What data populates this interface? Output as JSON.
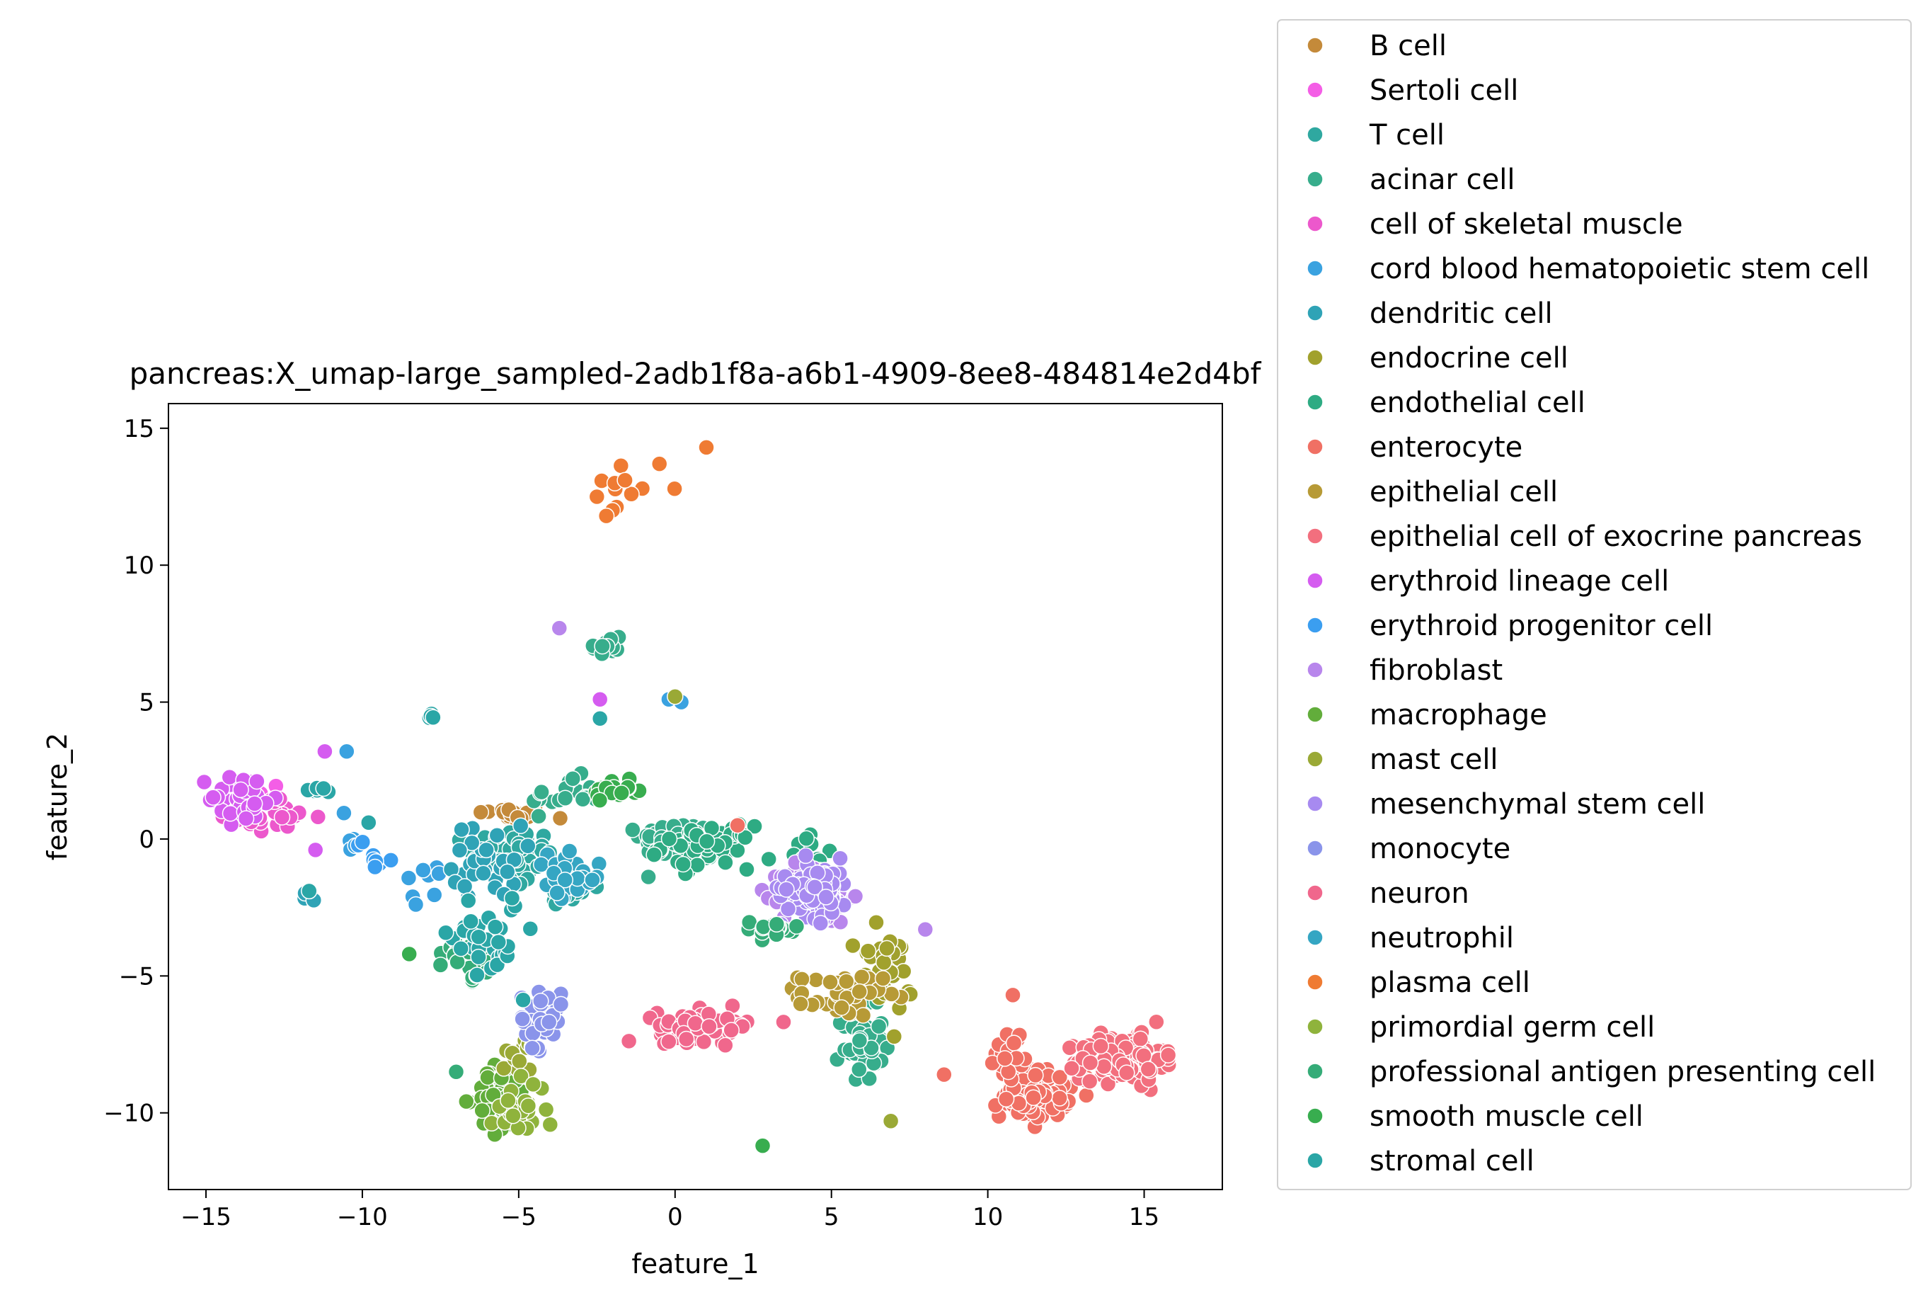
{
  "chart_data": {
    "type": "scatter",
    "title": "pancreas:X_umap-large_sampled-2adb1f8a-a6b1-4909-8ee8-484814e2d4bf",
    "xlabel": "feature_1",
    "ylabel": "feature_2",
    "xlim": [
      -16.2,
      17.5
    ],
    "ylim": [
      -12.8,
      15.9
    ],
    "xticks": [
      -15,
      -10,
      -5,
      0,
      5,
      10,
      15
    ],
    "yticks": [
      -10,
      -5,
      0,
      5,
      10,
      15
    ],
    "xtick_labels": [
      "−15",
      "−10",
      "−5",
      "0",
      "5",
      "10",
      "15"
    ],
    "ytick_labels": [
      "−10",
      "−5",
      "0",
      "5",
      "10",
      "15"
    ],
    "grid": false,
    "legend_placement": "outside-right",
    "series": [
      {
        "name": "B cell",
        "color": "#c48a3a",
        "clusters": [
          [
            -5.2,
            0.9,
            1.0,
            0.35,
            25
          ]
        ]
      },
      {
        "name": "Sertoli cell",
        "color": "#f45ee6",
        "clusters": [
          [
            -13.5,
            1.5,
            1.2,
            0.8,
            12
          ]
        ]
      },
      {
        "name": "T cell",
        "color": "#2fa8a0",
        "clusters": [
          [
            -5.2,
            -0.6,
            1.2,
            0.9,
            60
          ],
          [
            -3.4,
            -1.8,
            0.7,
            0.6,
            25
          ]
        ]
      },
      {
        "name": "acinar cell",
        "color": "#37ad8c",
        "clusters": [
          [
            -2.2,
            7.0,
            0.5,
            0.5,
            12
          ],
          [
            0.0,
            0.0,
            1.0,
            0.6,
            70
          ],
          [
            -3.5,
            1.6,
            1.0,
            0.6,
            20
          ],
          [
            6.0,
            -7.5,
            0.6,
            1.2,
            50
          ]
        ]
      },
      {
        "name": "cell of skeletal muscle",
        "color": "#ec58cc",
        "clusters": [
          [
            -12.8,
            0.8,
            1.2,
            0.6,
            28
          ]
        ]
      },
      {
        "name": "cord blood hematopoietic stem cell",
        "color": "#3aa2e0",
        "clusters": [
          [
            -8.0,
            -1.5,
            0.7,
            0.7,
            8
          ],
          [
            -10.4,
            0.3,
            0.4,
            0.8,
            5
          ]
        ]
      },
      {
        "name": "dendritic cell",
        "color": "#2fa3b6",
        "clusters": [
          [
            -6.0,
            -0.8,
            1.0,
            1.2,
            35
          ],
          [
            -11.8,
            -2.1,
            0.3,
            0.2,
            3
          ]
        ]
      },
      {
        "name": "endocrine cell",
        "color": "#a1a12d",
        "clusters": [
          [
            6.5,
            -5.0,
            1.0,
            1.4,
            40
          ]
        ]
      },
      {
        "name": "endothelial cell",
        "color": "#2eab83",
        "clusters": [
          [
            1.0,
            -0.3,
            1.3,
            0.7,
            60
          ],
          [
            4.5,
            -1.0,
            0.8,
            1.0,
            20
          ]
        ]
      },
      {
        "name": "enterocyte",
        "color": "#f07064",
        "clusters": [
          [
            11.5,
            -9.3,
            1.0,
            0.8,
            140
          ],
          [
            10.7,
            -7.8,
            0.4,
            0.8,
            25
          ]
        ]
      },
      {
        "name": "epithelial cell",
        "color": "#b79a36",
        "clusters": [
          [
            5.3,
            -5.7,
            1.2,
            0.7,
            40
          ]
        ]
      },
      {
        "name": "epithelial cell of exocrine pancreas",
        "color": "#f26f7e",
        "clusters": [
          [
            14.3,
            -8.0,
            1.2,
            0.7,
            220
          ]
        ]
      },
      {
        "name": "erythroid lineage cell",
        "color": "#d55cf0",
        "clusters": [
          [
            -13.8,
            1.5,
            1.0,
            0.8,
            40
          ]
        ]
      },
      {
        "name": "erythroid progenitor cell",
        "color": "#3b9ef0",
        "clusters": [
          [
            -9.5,
            -0.5,
            0.7,
            0.8,
            8
          ]
        ]
      },
      {
        "name": "fibroblast",
        "color": "#b886ec",
        "clusters": [
          [
            4.5,
            -2.0,
            1.0,
            1.0,
            90
          ]
        ]
      },
      {
        "name": "macrophage",
        "color": "#62ad3b",
        "clusters": [
          [
            -5.5,
            -9.5,
            0.8,
            1.1,
            80
          ]
        ]
      },
      {
        "name": "mast cell",
        "color": "#9aa936",
        "clusters": [
          [
            -5.0,
            -8.0,
            0.5,
            0.7,
            12
          ]
        ]
      },
      {
        "name": "mesenchymal stem cell",
        "color": "#a78af0",
        "clusters": [
          [
            4.5,
            -1.8,
            1.0,
            1.0,
            80
          ]
        ]
      },
      {
        "name": "monocyte",
        "color": "#8a94ea",
        "clusters": [
          [
            -4.3,
            -6.5,
            0.6,
            1.0,
            35
          ]
        ]
      },
      {
        "name": "neuron",
        "color": "#f0678c",
        "clusters": [
          [
            1.0,
            -6.8,
            1.4,
            0.5,
            70
          ]
        ]
      },
      {
        "name": "neutrophil",
        "color": "#35a6c3",
        "clusters": [
          [
            -3.5,
            -1.5,
            1.0,
            0.8,
            30
          ]
        ]
      },
      {
        "name": "plasma cell",
        "color": "#ef7b33",
        "clusters": [
          [
            -1.5,
            12.8,
            1.2,
            0.8,
            8
          ]
        ]
      },
      {
        "name": "primordial germ cell",
        "color": "#8fb33c",
        "clusters": [
          [
            -5.0,
            -9.8,
            0.8,
            0.9,
            25
          ]
        ]
      },
      {
        "name": "professional antigen presenting cell",
        "color": "#35ac78",
        "clusters": [
          [
            -6.5,
            -4.4,
            0.8,
            0.7,
            25
          ],
          [
            3.0,
            -3.3,
            0.9,
            0.3,
            20
          ]
        ]
      },
      {
        "name": "smooth muscle cell",
        "color": "#38ad4f",
        "clusters": [
          [
            -1.8,
            1.8,
            0.8,
            0.4,
            20
          ]
        ]
      },
      {
        "name": "stromal cell",
        "color": "#2aa6a6",
        "clusters": [
          [
            -6.0,
            -3.5,
            1.0,
            1.5,
            35
          ],
          [
            -7.8,
            4.5,
            0.4,
            0.2,
            4
          ],
          [
            -11.5,
            1.7,
            0.6,
            0.2,
            6
          ]
        ]
      }
    ],
    "outliers": [
      {
        "series": "plasma cell",
        "points": [
          [
            1.0,
            14.3
          ],
          [
            -0.5,
            13.7
          ],
          [
            -1.6,
            13.1
          ],
          [
            -2.5,
            12.5
          ],
          [
            -2.0,
            12.0
          ],
          [
            -2.2,
            11.8
          ]
        ]
      },
      {
        "series": "fibroblast",
        "points": [
          [
            -3.7,
            7.7
          ],
          [
            8.0,
            -3.3
          ]
        ]
      },
      {
        "series": "erythroid lineage cell",
        "points": [
          [
            -2.4,
            5.1
          ],
          [
            -11.2,
            3.2
          ],
          [
            -11.5,
            -0.4
          ]
        ]
      },
      {
        "series": "cord blood hematopoietic stem cell",
        "points": [
          [
            -0.2,
            5.1
          ],
          [
            0.2,
            5.0
          ],
          [
            -10.5,
            3.2
          ]
        ]
      },
      {
        "series": "mast cell",
        "points": [
          [
            0.0,
            5.2
          ],
          [
            6.9,
            -10.3
          ]
        ]
      },
      {
        "series": "enterocyte",
        "points": [
          [
            2.0,
            0.5
          ],
          [
            8.6,
            -8.6
          ],
          [
            10.8,
            -5.7
          ]
        ]
      },
      {
        "series": "smooth muscle cell",
        "points": [
          [
            2.8,
            -11.2
          ],
          [
            -8.5,
            -4.2
          ]
        ]
      },
      {
        "series": "stromal cell",
        "points": [
          [
            -2.4,
            4.4
          ],
          [
            -11.7,
            -1.9
          ],
          [
            -9.8,
            0.6
          ]
        ]
      },
      {
        "series": "neuron",
        "points": [
          [
            -0.2,
            -7.4
          ]
        ]
      },
      {
        "series": "professional antigen presenting cell",
        "points": [
          [
            -7.0,
            -8.5
          ],
          [
            -7.5,
            -4.6
          ]
        ]
      }
    ]
  }
}
